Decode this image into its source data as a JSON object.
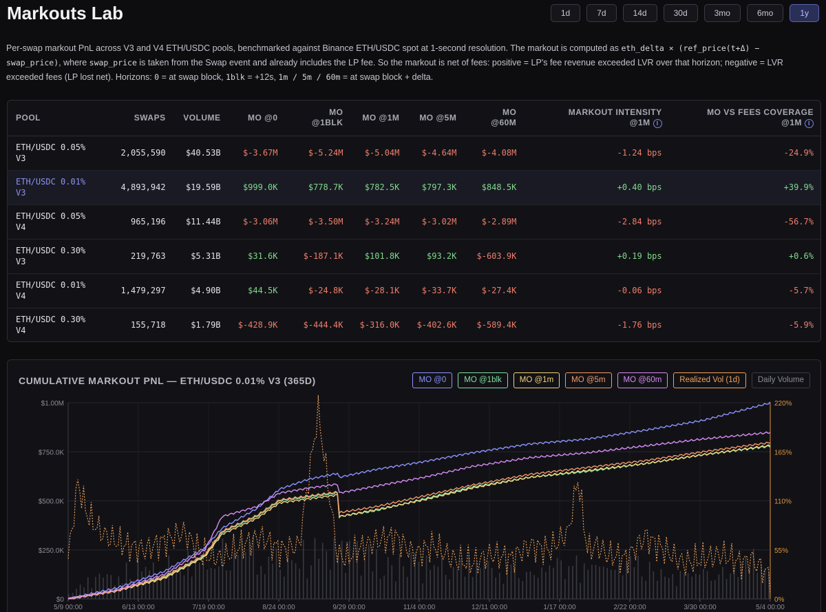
{
  "app": {
    "title": "Markouts Lab"
  },
  "ranges": [
    {
      "label": "1d",
      "active": false
    },
    {
      "label": "7d",
      "active": false
    },
    {
      "label": "14d",
      "active": false
    },
    {
      "label": "30d",
      "active": false
    },
    {
      "label": "3mo",
      "active": false
    },
    {
      "label": "6mo",
      "active": false
    },
    {
      "label": "1y",
      "active": true
    }
  ],
  "description": {
    "p1": "Per-swap markout PnL across V3 and V4 ETH/USDC pools, benchmarked against Binance ETH/USDC spot at 1-second resolution. The markout is computed as ",
    "code1": "eth_delta × (ref_price(t+Δ) − swap_price)",
    "p2": ", where ",
    "code2": "swap_price",
    "p3": " is taken from the Swap event and already includes the LP fee. So the markout is net of fees: positive = LP's fee revenue exceeded LVR over that horizon; negative = LVR exceeded fees (LP lost net). Horizons: ",
    "code3": "0",
    "p4": " = at swap block, ",
    "code4": "1blk",
    "p5": " = +12s, ",
    "code5": "1m / 5m / 60m",
    "p6": " = at swap block + delta."
  },
  "table": {
    "headers": {
      "pool": "POOL",
      "swaps": "SWAPS",
      "volume": "VOLUME",
      "mo0": "MO @0",
      "mo1blk_a": "MO",
      "mo1blk_b": "@1BLK",
      "mo1m": "MO @1M",
      "mo5m": "MO @5M",
      "mo60m_a": "MO",
      "mo60m_b": "@60M",
      "intensity_a": "MARKOUT INTENSITY",
      "intensity_b": "@1M",
      "coverage_a": "MO VS FEES COVERAGE",
      "coverage_b": "@1M",
      "info_icon": "i"
    },
    "rows": [
      {
        "pool_a": "ETH/USDC 0.05%",
        "pool_b": "V3",
        "swaps": "2,055,590",
        "volume": "$40.53B",
        "mo0": "$-3.67M",
        "mo1blk": "$-5.24M",
        "mo1m": "$-5.04M",
        "mo5m": "$-4.64M",
        "mo60m": "$-4.08M",
        "intensity": "-1.24 bps",
        "coverage": "-24.9%",
        "highlight": false
      },
      {
        "pool_a": "ETH/USDC 0.01%",
        "pool_b": "V3",
        "swaps": "4,893,942",
        "volume": "$19.59B",
        "mo0": "$999.0K",
        "mo1blk": "$778.7K",
        "mo1m": "$782.5K",
        "mo5m": "$797.3K",
        "mo60m": "$848.5K",
        "intensity": "+0.40 bps",
        "coverage": "+39.9%",
        "highlight": true
      },
      {
        "pool_a": "ETH/USDC 0.05%",
        "pool_b": "V4",
        "swaps": "965,196",
        "volume": "$11.44B",
        "mo0": "$-3.06M",
        "mo1blk": "$-3.50M",
        "mo1m": "$-3.24M",
        "mo5m": "$-3.02M",
        "mo60m": "$-2.89M",
        "intensity": "-2.84 bps",
        "coverage": "-56.7%",
        "highlight": false
      },
      {
        "pool_a": "ETH/USDC 0.30%",
        "pool_b": "V3",
        "swaps": "219,763",
        "volume": "$5.31B",
        "mo0": "$31.6K",
        "mo1blk": "$-187.1K",
        "mo1m": "$101.8K",
        "mo5m": "$93.2K",
        "mo60m": "$-603.9K",
        "intensity": "+0.19 bps",
        "coverage": "+0.6%",
        "highlight": false
      },
      {
        "pool_a": "ETH/USDC 0.01%",
        "pool_b": "V4",
        "swaps": "1,479,297",
        "volume": "$4.90B",
        "mo0": "$44.5K",
        "mo1blk": "$-24.8K",
        "mo1m": "$-28.1K",
        "mo5m": "$-33.7K",
        "mo60m": "$-27.4K",
        "intensity": "-0.06 bps",
        "coverage": "-5.7%",
        "highlight": false
      },
      {
        "pool_a": "ETH/USDC 0.30%",
        "pool_b": "V4",
        "swaps": "155,718",
        "volume": "$1.79B",
        "mo0": "$-428.9K",
        "mo1blk": "$-444.4K",
        "mo1m": "$-316.0K",
        "mo5m": "$-402.6K",
        "mo60m": "$-589.4K",
        "intensity": "-1.76 bps",
        "coverage": "-5.9%",
        "highlight": false
      }
    ]
  },
  "chart_data": {
    "type": "line",
    "title": "CUMULATIVE MARKOUT PNL — ETH/USDC 0.01% V3 (365D)",
    "x_ticks": [
      "5/9 00:00",
      "6/13 00:00",
      "7/19 00:00",
      "8/24 00:00",
      "9/29 00:00",
      "11/4 00:00",
      "12/11 00:00",
      "1/17 00:00",
      "2/22 00:00",
      "3/30 00:00",
      "5/4 00:00"
    ],
    "y_left_ticks": [
      "$0",
      "$250.0K",
      "$500.0K",
      "$750.0K",
      "$1.00M"
    ],
    "y_left_range": [
      0,
      1000000
    ],
    "y_right_ticks": [
      "0%",
      "55%",
      "110%",
      "165%",
      "220%"
    ],
    "y_right_range": [
      0,
      220
    ],
    "grid": true,
    "colors": {
      "mo0": "#8d93ff",
      "mo1blk": "#7fe0a0",
      "mo1m": "#f5d37a",
      "mo5m": "#f59a6a",
      "mo60m": "#d78cf5",
      "vol": "#f0a35c",
      "volume": "#8a8a96"
    },
    "legend": [
      {
        "key": "mo0",
        "label": "MO @0",
        "active": true
      },
      {
        "key": "mo1blk",
        "label": "MO @1blk",
        "active": true
      },
      {
        "key": "mo1m",
        "label": "MO @1m",
        "active": true
      },
      {
        "key": "mo5m",
        "label": "MO @5m",
        "active": true
      },
      {
        "key": "mo60m",
        "label": "MO @60m",
        "active": true
      },
      {
        "key": "vol",
        "label": "Realized Vol (1d)",
        "active": true
      },
      {
        "key": "volume",
        "label": "Daily Volume",
        "active": false
      }
    ],
    "series_x_days": [
      0,
      25,
      50,
      71,
      80,
      98,
      110,
      125,
      140,
      141,
      160,
      185,
      210,
      240,
      270,
      300,
      330,
      365
    ],
    "series": [
      {
        "key": "mo0",
        "name": "MO @0",
        "values": [
          0,
          55000,
          140000,
          260000,
          360000,
          460000,
          560000,
          610000,
          640000,
          620000,
          660000,
          700000,
          745000,
          790000,
          815000,
          860000,
          910000,
          999000
        ]
      },
      {
        "key": "mo1blk",
        "name": "MO @1blk",
        "values": [
          0,
          40000,
          110000,
          220000,
          340000,
          420000,
          500000,
          520000,
          540000,
          420000,
          450000,
          510000,
          570000,
          620000,
          650000,
          690000,
          735000,
          778700
        ]
      },
      {
        "key": "mo1m",
        "name": "MO @1m",
        "values": [
          0,
          40000,
          105000,
          215000,
          330000,
          410000,
          490000,
          510000,
          530000,
          420000,
          455000,
          505000,
          565000,
          620000,
          655000,
          690000,
          735000,
          782500
        ]
      },
      {
        "key": "mo5m",
        "name": "MO @5m",
        "values": [
          0,
          42000,
          115000,
          225000,
          345000,
          425000,
          505000,
          525000,
          545000,
          440000,
          470000,
          525000,
          580000,
          635000,
          670000,
          705000,
          750000,
          797300
        ]
      },
      {
        "key": "mo60m",
        "name": "MO @60m",
        "values": [
          0,
          45000,
          125000,
          250000,
          420000,
          470000,
          540000,
          565000,
          585000,
          540000,
          575000,
          620000,
          675000,
          720000,
          745000,
          780000,
          815000,
          848500
        ]
      }
    ],
    "realized_vol_x_days": [
      0,
      5,
      10,
      15,
      20,
      30,
      40,
      50,
      60,
      70,
      80,
      90,
      100,
      110,
      120,
      130,
      140,
      145,
      150,
      160,
      170,
      180,
      190,
      200,
      210,
      220,
      230,
      240,
      250,
      260,
      265,
      270,
      275,
      280,
      290,
      300,
      310,
      320,
      330,
      340,
      350,
      355,
      360,
      365
    ],
    "realized_vol_values": [
      45,
      130,
      95,
      80,
      70,
      60,
      55,
      65,
      75,
      50,
      45,
      60,
      70,
      55,
      60,
      210,
      50,
      45,
      55,
      65,
      70,
      50,
      60,
      45,
      40,
      50,
      45,
      60,
      55,
      75,
      135,
      55,
      60,
      50,
      45,
      70,
      55,
      40,
      45,
      50,
      40,
      45,
      35,
      25
    ],
    "daily_volume_x_days": [
      0,
      20,
      40,
      60,
      80,
      100,
      120,
      140,
      160,
      180,
      200,
      220,
      240,
      260,
      280,
      300,
      320,
      340,
      360,
      365
    ],
    "daily_volume_values": [
      5,
      10,
      15,
      18,
      25,
      22,
      20,
      24,
      18,
      16,
      15,
      14,
      12,
      15,
      18,
      14,
      10,
      12,
      20,
      8
    ]
  }
}
